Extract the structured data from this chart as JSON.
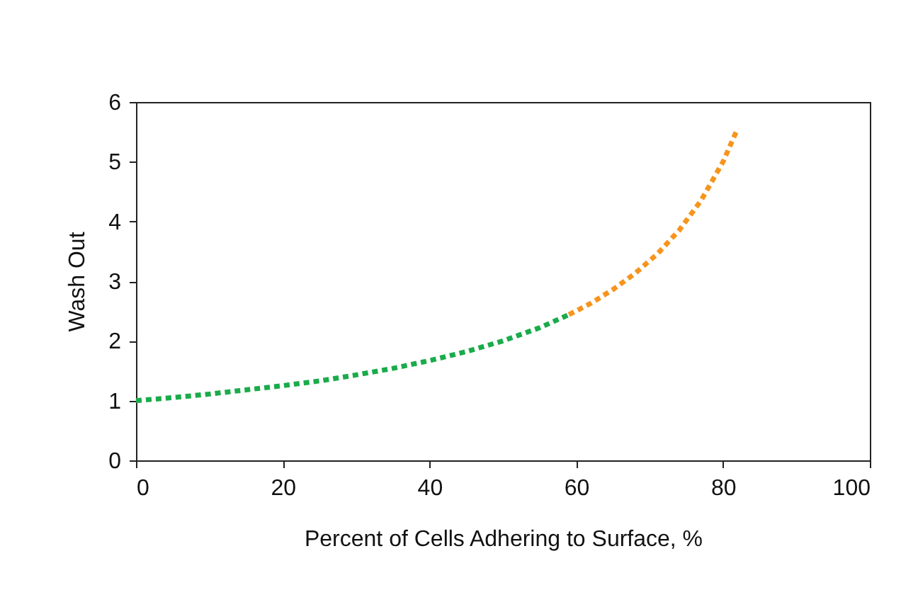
{
  "chart_data": {
    "type": "line",
    "xlabel": "Percent of Cells Adhering to Surface, %",
    "ylabel": "Wash Out",
    "series": [
      {
        "color": "#1aab4a",
        "x": [
          0,
          5,
          10,
          15,
          20,
          25,
          30,
          35,
          40,
          45,
          50,
          55,
          59
        ],
        "values": [
          1,
          1.05,
          1.11,
          1.18,
          1.25,
          1.33,
          1.43,
          1.54,
          1.67,
          1.82,
          2,
          2.22,
          2.44
        ]
      },
      {
        "color": "#f7941d",
        "x": [
          59,
          62,
          65,
          68,
          71,
          74,
          77,
          80,
          82
        ],
        "values": [
          2.44,
          2.63,
          2.86,
          3.13,
          3.45,
          3.85,
          4.35,
          5,
          5.56
        ]
      }
    ],
    "xlim": [
      0,
      100
    ],
    "xticks": [
      0,
      20,
      40,
      60,
      80,
      100
    ],
    "ylim": [
      0,
      6
    ],
    "yticks": [
      0,
      1,
      2,
      3,
      4,
      5,
      6
    ],
    "grid": false,
    "legend": false,
    "marker": "none",
    "line_style": "dashed"
  }
}
